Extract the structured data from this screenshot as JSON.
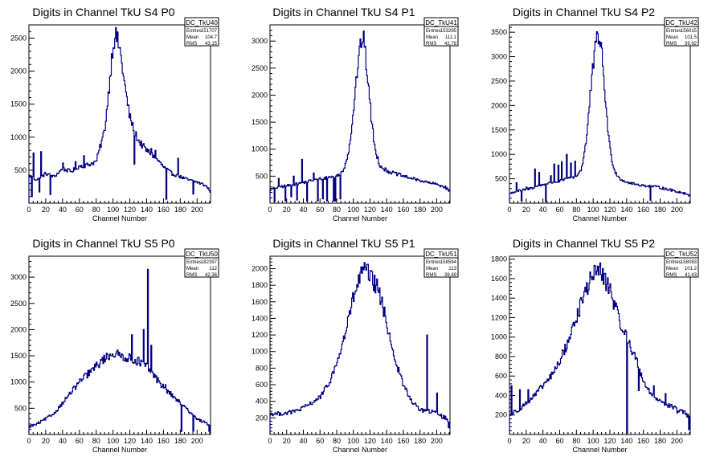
{
  "chart_data": [
    {
      "type": "histogram",
      "title": "Digits in Channel TkU S4 P0",
      "xlabel": "Channel Number",
      "ylabel": "",
      "xlim": [
        0,
        216
      ],
      "ylim": [
        0,
        2700
      ],
      "xticks": [
        0,
        20,
        40,
        60,
        80,
        100,
        120,
        140,
        160,
        180,
        200
      ],
      "yticks": [
        500,
        1000,
        1500,
        2000,
        2500
      ],
      "stats": {
        "name": "DC_TkU40",
        "entries": "151707",
        "mean": "104.7",
        "rms": "43.15"
      },
      "anchors": [
        [
          0,
          420
        ],
        [
          10,
          350
        ],
        [
          20,
          450
        ],
        [
          30,
          400
        ],
        [
          40,
          520
        ],
        [
          50,
          480
        ],
        [
          60,
          560
        ],
        [
          70,
          580
        ],
        [
          80,
          630
        ],
        [
          90,
          1100
        ],
        [
          95,
          1700
        ],
        [
          100,
          2400
        ],
        [
          103,
          2550
        ],
        [
          108,
          2350
        ],
        [
          115,
          1700
        ],
        [
          120,
          1300
        ],
        [
          130,
          950
        ],
        [
          140,
          800
        ],
        [
          150,
          700
        ],
        [
          160,
          550
        ],
        [
          170,
          450
        ],
        [
          180,
          400
        ],
        [
          190,
          350
        ],
        [
          200,
          320
        ],
        [
          210,
          270
        ],
        [
          216,
          180
        ]
      ],
      "spikes": [
        [
          3,
          100
        ],
        [
          5,
          760
        ],
        [
          12,
          170
        ],
        [
          14,
          780
        ],
        [
          25,
          130
        ],
        [
          40,
          610
        ],
        [
          55,
          630
        ],
        [
          65,
          720
        ],
        [
          125,
          590
        ],
        [
          145,
          830
        ],
        [
          150,
          800
        ],
        [
          163,
          60
        ],
        [
          177,
          680
        ],
        [
          195,
          140
        ]
      ]
    },
    {
      "type": "histogram",
      "title": "Digits in Channel TkU S4 P1",
      "xlabel": "Channel Number",
      "ylabel": "",
      "xlim": [
        0,
        216
      ],
      "ylim": [
        0,
        3300
      ],
      "xticks": [
        0,
        20,
        40,
        60,
        80,
        100,
        120,
        140,
        160,
        180,
        200
      ],
      "yticks": [
        500,
        1000,
        1500,
        2000,
        2500,
        3000
      ],
      "stats": {
        "name": "DC_TkU41",
        "entries": "153295",
        "mean": "111.1",
        "rms": "42.78"
      },
      "anchors": [
        [
          0,
          250
        ],
        [
          10,
          300
        ],
        [
          20,
          320
        ],
        [
          30,
          350
        ],
        [
          40,
          380
        ],
        [
          50,
          420
        ],
        [
          60,
          450
        ],
        [
          70,
          480
        ],
        [
          80,
          500
        ],
        [
          88,
          600
        ],
        [
          95,
          1000
        ],
        [
          100,
          1700
        ],
        [
          105,
          2500
        ],
        [
          110,
          3050
        ],
        [
          113,
          3000
        ],
        [
          118,
          2200
        ],
        [
          122,
          1500
        ],
        [
          126,
          1000
        ],
        [
          132,
          700
        ],
        [
          140,
          600
        ],
        [
          150,
          550
        ],
        [
          160,
          500
        ],
        [
          170,
          460
        ],
        [
          180,
          420
        ],
        [
          190,
          380
        ],
        [
          200,
          350
        ],
        [
          210,
          300
        ],
        [
          216,
          220
        ]
      ],
      "spikes": [
        [
          5,
          30
        ],
        [
          10,
          460
        ],
        [
          18,
          40
        ],
        [
          25,
          120
        ],
        [
          28,
          500
        ],
        [
          32,
          60
        ],
        [
          38,
          810
        ],
        [
          44,
          40
        ],
        [
          52,
          560
        ],
        [
          57,
          40
        ],
        [
          63,
          80
        ],
        [
          68,
          40
        ],
        [
          76,
          40
        ],
        [
          78,
          40
        ],
        [
          84,
          80
        ]
      ]
    },
    {
      "type": "histogram",
      "title": "Digits in Channel TkU S4 P2",
      "xlabel": "Channel Number",
      "ylabel": "",
      "xlim": [
        0,
        216
      ],
      "ylim": [
        0,
        3650
      ],
      "xticks": [
        0,
        20,
        40,
        60,
        80,
        100,
        120,
        140,
        160,
        180,
        200
      ],
      "yticks": [
        500,
        1000,
        1500,
        2000,
        2500,
        3000,
        3500
      ],
      "stats": {
        "name": "DC_TkU42",
        "entries": "156015",
        "mean": "101.5",
        "rms": "39.92"
      },
      "anchors": [
        [
          0,
          200
        ],
        [
          10,
          250
        ],
        [
          20,
          280
        ],
        [
          30,
          330
        ],
        [
          40,
          380
        ],
        [
          50,
          420
        ],
        [
          60,
          450
        ],
        [
          70,
          500
        ],
        [
          80,
          550
        ],
        [
          86,
          700
        ],
        [
          92,
          1300
        ],
        [
          97,
          2300
        ],
        [
          102,
          3100
        ],
        [
          106,
          3450
        ],
        [
          109,
          3300
        ],
        [
          113,
          2500
        ],
        [
          117,
          1600
        ],
        [
          121,
          1000
        ],
        [
          126,
          650
        ],
        [
          132,
          500
        ],
        [
          140,
          430
        ],
        [
          150,
          390
        ],
        [
          160,
          360
        ],
        [
          170,
          350
        ],
        [
          180,
          320
        ],
        [
          190,
          280
        ],
        [
          200,
          240
        ],
        [
          210,
          200
        ],
        [
          216,
          160
        ]
      ],
      "spikes": [
        [
          8,
          420
        ],
        [
          14,
          50
        ],
        [
          20,
          330
        ],
        [
          30,
          700
        ],
        [
          35,
          630
        ],
        [
          43,
          30
        ],
        [
          49,
          560
        ],
        [
          53,
          800
        ],
        [
          58,
          780
        ],
        [
          62,
          850
        ],
        [
          68,
          1000
        ],
        [
          73,
          820
        ],
        [
          78,
          860
        ],
        [
          168,
          60
        ]
      ]
    },
    {
      "type": "histogram",
      "title": "Digits in Channel TkU S5 P0",
      "xlabel": "Channel Number",
      "ylabel": "",
      "xlim": [
        0,
        216
      ],
      "ylim": [
        0,
        3400
      ],
      "xticks": [
        0,
        20,
        40,
        60,
        80,
        100,
        120,
        140,
        160,
        180,
        200
      ],
      "yticks": [
        500,
        1000,
        1500,
        2000,
        2500,
        3000
      ],
      "stats": {
        "name": "DC_TkU50",
        "entries": "182397",
        "mean": "112",
        "rms": "42.36"
      },
      "anchors": [
        [
          0,
          150
        ],
        [
          10,
          200
        ],
        [
          20,
          300
        ],
        [
          30,
          400
        ],
        [
          40,
          600
        ],
        [
          50,
          800
        ],
        [
          60,
          1000
        ],
        [
          70,
          1150
        ],
        [
          80,
          1300
        ],
        [
          90,
          1450
        ],
        [
          100,
          1550
        ],
        [
          110,
          1500
        ],
        [
          120,
          1450
        ],
        [
          130,
          1400
        ],
        [
          140,
          1300
        ],
        [
          150,
          1100
        ],
        [
          160,
          900
        ],
        [
          170,
          750
        ],
        [
          180,
          600
        ],
        [
          190,
          450
        ],
        [
          200,
          300
        ],
        [
          210,
          220
        ],
        [
          216,
          180
        ]
      ],
      "spikes": [
        [
          122,
          1900
        ],
        [
          136,
          2000
        ],
        [
          141,
          3150
        ],
        [
          145,
          1700
        ],
        [
          155,
          1000
        ],
        [
          162,
          950
        ],
        [
          181,
          60
        ],
        [
          195,
          60
        ],
        [
          214,
          60
        ]
      ]
    },
    {
      "type": "histogram",
      "title": "Digits in Channel TkU S5 P1",
      "xlabel": "Channel Number",
      "ylabel": "",
      "xlim": [
        0,
        216
      ],
      "ylim": [
        0,
        2150
      ],
      "xticks": [
        0,
        20,
        40,
        60,
        80,
        100,
        120,
        140,
        160,
        180,
        200
      ],
      "yticks": [
        200,
        400,
        600,
        800,
        1000,
        1200,
        1400,
        1600,
        1800,
        2000
      ],
      "stats": {
        "name": "DC_TkU51",
        "entries": "158594",
        "mean": "113",
        "rms": "39.69"
      },
      "anchors": [
        [
          0,
          250
        ],
        [
          10,
          250
        ],
        [
          20,
          260
        ],
        [
          30,
          280
        ],
        [
          40,
          320
        ],
        [
          50,
          380
        ],
        [
          60,
          450
        ],
        [
          70,
          600
        ],
        [
          80,
          850
        ],
        [
          90,
          1200
        ],
        [
          100,
          1650
        ],
        [
          110,
          1950
        ],
        [
          115,
          1980
        ],
        [
          120,
          1900
        ],
        [
          130,
          1750
        ],
        [
          140,
          1350
        ],
        [
          150,
          900
        ],
        [
          160,
          600
        ],
        [
          170,
          400
        ],
        [
          180,
          300
        ],
        [
          190,
          280
        ],
        [
          200,
          260
        ],
        [
          210,
          200
        ],
        [
          216,
          160
        ]
      ],
      "spikes": [
        [
          188,
          1200
        ],
        [
          200,
          500
        ],
        [
          214,
          80
        ]
      ]
    },
    {
      "type": "histogram",
      "title": "Digits in Channel TkU S5 P2",
      "xlabel": "Channel Number",
      "ylabel": "",
      "xlim": [
        0,
        216
      ],
      "ylim": [
        0,
        1830
      ],
      "xticks": [
        0,
        20,
        40,
        60,
        80,
        100,
        120,
        140,
        160,
        180,
        200
      ],
      "yticks": [
        200,
        400,
        600,
        800,
        1000,
        1200,
        1400,
        1600,
        1800
      ],
      "stats": {
        "name": "DC_TkU52",
        "entries": "158083",
        "mean": "101.2",
        "rms": "41.43"
      },
      "anchors": [
        [
          0,
          200
        ],
        [
          10,
          250
        ],
        [
          20,
          320
        ],
        [
          30,
          400
        ],
        [
          40,
          500
        ],
        [
          50,
          600
        ],
        [
          60,
          750
        ],
        [
          70,
          950
        ],
        [
          80,
          1200
        ],
        [
          90,
          1450
        ],
        [
          100,
          1650
        ],
        [
          105,
          1700
        ],
        [
          110,
          1650
        ],
        [
          120,
          1500
        ],
        [
          130,
          1200
        ],
        [
          140,
          1000
        ],
        [
          150,
          800
        ],
        [
          160,
          550
        ],
        [
          170,
          400
        ],
        [
          180,
          350
        ],
        [
          190,
          300
        ],
        [
          200,
          260
        ],
        [
          210,
          220
        ],
        [
          216,
          160
        ]
      ],
      "spikes": [
        [
          2,
          500
        ],
        [
          12,
          460
        ],
        [
          22,
          460
        ],
        [
          140,
          10
        ],
        [
          154,
          450
        ],
        [
          172,
          500
        ],
        [
          186,
          420
        ],
        [
          200,
          220
        ],
        [
          214,
          50
        ]
      ]
    }
  ]
}
